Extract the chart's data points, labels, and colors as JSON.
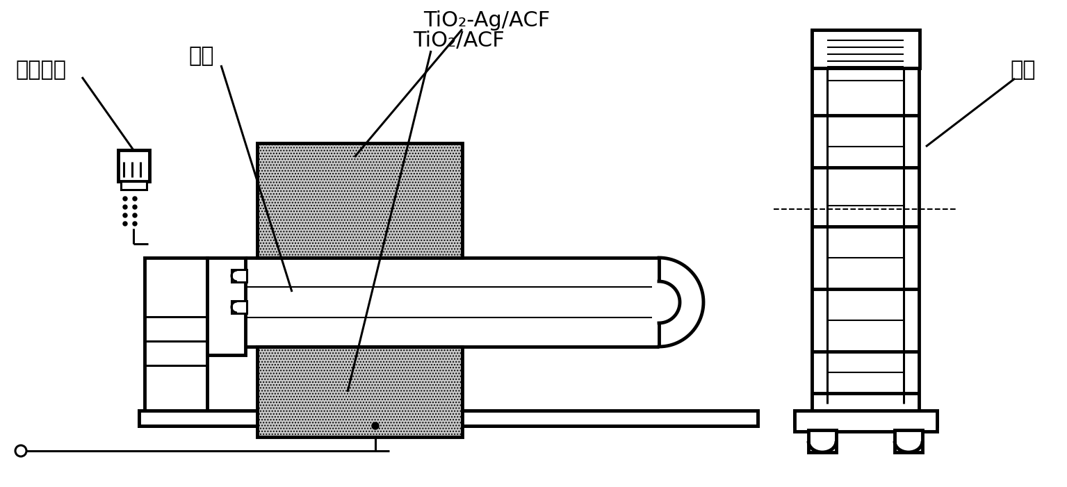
{
  "bg_color": "#ffffff",
  "line_color": "#000000",
  "labels": {
    "lamp_power": "灯管电源",
    "lamp": "灯管",
    "tio2_ag": "TiO₂-Ag/ACF",
    "tio2": "TiO₂/ACF",
    "fan": "风扇"
  },
  "font_size": 22
}
